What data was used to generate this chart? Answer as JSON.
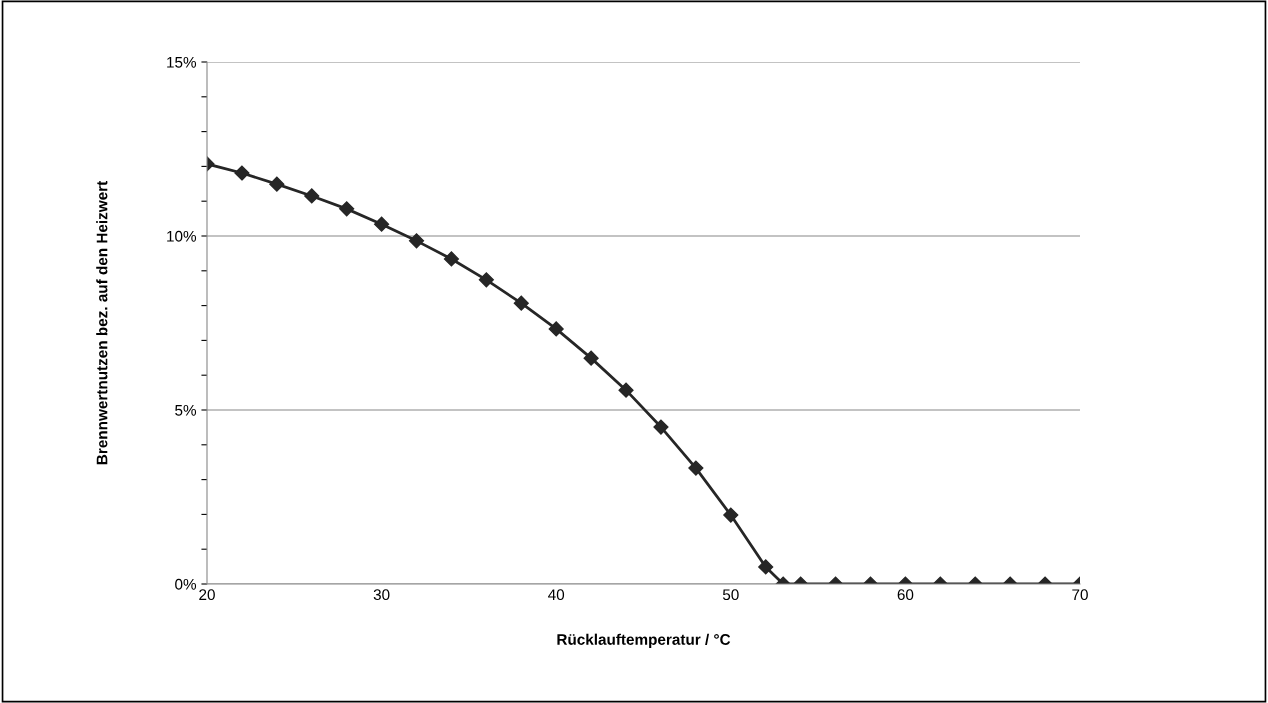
{
  "chart_data": {
    "type": "line",
    "xlabel": "Rücklauftemperatur / °C",
    "ylabel": "Brennwertnutzen bez. auf den Heizwert",
    "x": [
      20,
      22,
      24,
      26,
      28,
      30,
      32,
      34,
      36,
      38,
      40,
      42,
      44,
      46,
      48,
      50,
      52,
      53,
      54,
      56,
      58,
      60,
      62,
      64,
      66,
      68,
      70
    ],
    "series": [
      {
        "color": "#262626",
        "values": [
          12.07,
          11.81,
          11.49,
          11.15,
          10.78,
          10.34,
          9.86,
          9.34,
          8.74,
          8.07,
          7.33,
          6.49,
          5.57,
          4.51,
          3.33,
          1.98,
          0.49,
          0,
          0,
          0,
          0,
          0,
          0,
          0,
          0,
          0,
          0
        ]
      }
    ],
    "xlim": [
      20,
      70
    ],
    "xticks": [
      20,
      30,
      40,
      50,
      60,
      70
    ],
    "ylim": [
      0,
      15
    ],
    "yticks": [
      {
        "value": 0,
        "label": "0%"
      },
      {
        "value": 1,
        "label": null
      },
      {
        "value": 2,
        "label": null
      },
      {
        "value": 3,
        "label": null
      },
      {
        "value": 4,
        "label": null
      },
      {
        "value": 5,
        "label": "5%"
      },
      {
        "value": 6,
        "label": null
      },
      {
        "value": 7,
        "label": null
      },
      {
        "value": 8,
        "label": null
      },
      {
        "value": 9,
        "label": null
      },
      {
        "value": 10,
        "label": "10%"
      },
      {
        "value": 11,
        "label": null
      },
      {
        "value": 12,
        "label": null
      },
      {
        "value": 13,
        "label": null
      },
      {
        "value": 14,
        "label": null
      },
      {
        "value": 15,
        "label": "15%"
      }
    ],
    "grid": "y",
    "legend": false,
    "marker": "diamond",
    "line_style": "solid"
  }
}
